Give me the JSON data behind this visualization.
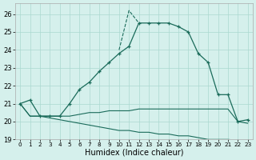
{
  "xlabel": "Humidex (Indice chaleur)",
  "xlim": [
    -0.5,
    23.5
  ],
  "ylim": [
    19.0,
    26.6
  ],
  "yticks": [
    19,
    20,
    21,
    22,
    23,
    24,
    25,
    26
  ],
  "xticks": [
    0,
    1,
    2,
    3,
    4,
    5,
    6,
    7,
    8,
    9,
    10,
    11,
    12,
    13,
    14,
    15,
    16,
    17,
    18,
    19,
    20,
    21,
    22,
    23
  ],
  "bg_color": "#d5f0ec",
  "grid_color": "#aad8d0",
  "line_color": "#1a6b5a",
  "humidex_y": [
    21.0,
    21.2,
    20.3,
    20.3,
    20.3,
    21.0,
    21.8,
    22.2,
    22.8,
    23.3,
    23.8,
    24.2,
    25.5,
    25.5,
    25.5,
    25.5,
    25.3,
    25.0,
    23.8,
    23.3,
    21.5,
    21.5,
    20.0,
    20.1
  ],
  "humidex_extra": [
    21.0,
    21.2,
    20.3,
    20.3,
    20.3,
    21.0,
    21.3,
    22.2,
    22.8,
    23.3,
    24.0,
    26.2,
    25.5,
    25.5,
    25.5,
    25.5,
    25.3,
    25.0,
    23.8,
    23.3,
    21.5,
    21.5,
    20.0,
    20.1
  ],
  "line1_y": [
    21.0,
    20.3,
    20.3,
    20.3,
    20.3,
    20.3,
    20.4,
    20.5,
    20.5,
    20.6,
    20.6,
    20.6,
    20.7,
    20.7,
    20.7,
    20.7,
    20.7,
    20.7,
    20.7,
    20.7,
    20.7,
    20.7,
    20.0,
    19.9
  ],
  "line2_y": [
    21.0,
    20.3,
    20.3,
    20.2,
    20.1,
    20.0,
    19.9,
    19.8,
    19.7,
    19.6,
    19.5,
    19.5,
    19.4,
    19.4,
    19.3,
    19.3,
    19.2,
    19.2,
    19.1,
    19.0,
    19.0,
    19.0,
    18.95,
    18.9
  ]
}
